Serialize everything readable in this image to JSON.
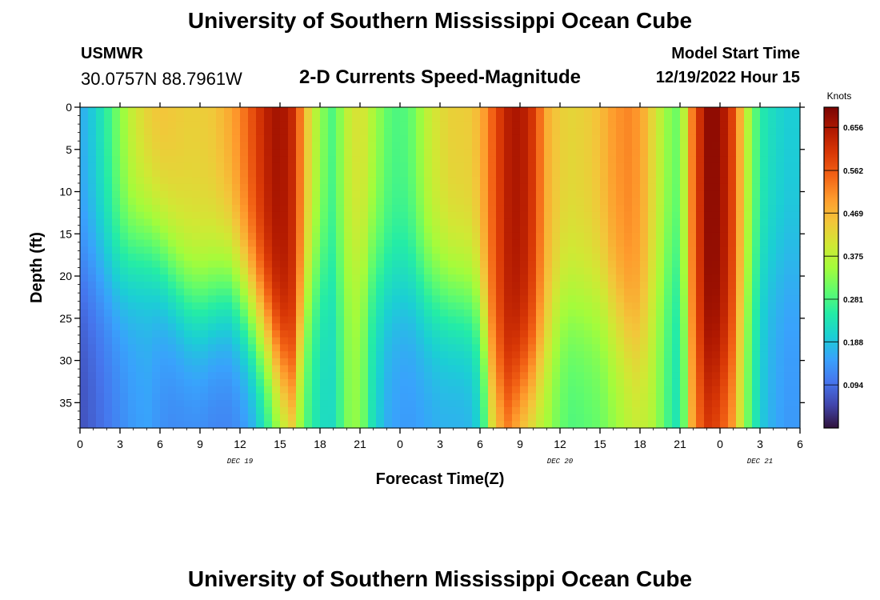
{
  "header": {
    "title": "University of Southern Mississippi Ocean Cube",
    "station": "USMWR",
    "coordinates": "30.0757N  88.7961W",
    "subtitle": "2-D Currents Speed-Magnitude",
    "model_start_label": "Model Start Time",
    "model_start_value": "12/19/2022 Hour 15"
  },
  "footer": {
    "title": "University of Southern Mississippi Ocean Cube"
  },
  "chart_data": {
    "type": "heatmap",
    "title": "2-D Currents Speed-Magnitude",
    "xlabel": "Forecast Time(Z)",
    "ylabel": "Depth (ft)",
    "x_tick_labels": [
      "0",
      "3",
      "6",
      "9",
      "12",
      "15",
      "18",
      "21",
      "0",
      "3",
      "6",
      "9",
      "12",
      "15",
      "18",
      "21",
      "0",
      "3",
      "6"
    ],
    "x_range_hours": [
      0,
      54
    ],
    "day_labels": [
      {
        "text": "DEC 19",
        "hour": 12
      },
      {
        "text": "DEC 20",
        "hour": 36
      },
      {
        "text": "DEC 21",
        "hour": 51
      }
    ],
    "y_ticks": [
      0,
      5,
      10,
      15,
      20,
      25,
      30,
      35
    ],
    "y_range_ft": [
      0,
      38
    ],
    "colorbar": {
      "label": "Knots",
      "min": 0.0,
      "max": 0.7,
      "ticks": [
        0.094,
        0.188,
        0.281,
        0.375,
        0.469,
        0.562,
        0.656
      ],
      "colormap": [
        "#30123b",
        "#4145ab",
        "#4675ed",
        "#39a2fc",
        "#1bcfd4",
        "#24eca6",
        "#61fc6c",
        "#a4fc3b",
        "#d1e834",
        "#f3c63a",
        "#fe9b2d",
        "#f36315",
        "#d93806",
        "#b11901",
        "#7a0402"
      ]
    },
    "columns": [
      {
        "hour": 0,
        "surf": 0.16,
        "bot": 0.06,
        "z": 0.5
      },
      {
        "hour": 1,
        "surf": 0.2,
        "bot": 0.08,
        "z": 0.5
      },
      {
        "hour": 2,
        "surf": 0.26,
        "bot": 0.1,
        "z": 0.5
      },
      {
        "hour": 3,
        "surf": 0.33,
        "bot": 0.12,
        "z": 0.5
      },
      {
        "hour": 4,
        "surf": 0.4,
        "bot": 0.14,
        "z": 0.45
      },
      {
        "hour": 5,
        "surf": 0.44,
        "bot": 0.15,
        "z": 0.42
      },
      {
        "hour": 6,
        "surf": 0.46,
        "bot": 0.13,
        "z": 0.45
      },
      {
        "hour": 7,
        "surf": 0.45,
        "bot": 0.12,
        "z": 0.52
      },
      {
        "hour": 8,
        "surf": 0.44,
        "bot": 0.12,
        "z": 0.58
      },
      {
        "hour": 9,
        "surf": 0.44,
        "bot": 0.12,
        "z": 0.6
      },
      {
        "hour": 10,
        "surf": 0.45,
        "bot": 0.11,
        "z": 0.58
      },
      {
        "hour": 11,
        "surf": 0.48,
        "bot": 0.11,
        "z": 0.55
      },
      {
        "hour": 12,
        "surf": 0.52,
        "bot": 0.12,
        "z": 0.58
      },
      {
        "hour": 13,
        "surf": 0.58,
        "bot": 0.15,
        "z": 0.65
      },
      {
        "hour": 14,
        "surf": 0.64,
        "bot": 0.22,
        "z": 0.72
      },
      {
        "hour": 15,
        "surf": 0.67,
        "bot": 0.3,
        "z": 0.82
      },
      {
        "hour": 16,
        "surf": 0.62,
        "bot": 0.36,
        "z": 0.9
      },
      {
        "hour": 17,
        "surf": 0.45,
        "bot": 0.28,
        "z": 0.6
      },
      {
        "hour": 18,
        "surf": 0.34,
        "bot": 0.22,
        "z": 0.5
      },
      {
        "hour": 19,
        "surf": 0.28,
        "bot": 0.22,
        "z": 0.5
      },
      {
        "hour": 20,
        "surf": 0.38,
        "bot": 0.32,
        "z": 0.5
      },
      {
        "hour": 21,
        "surf": 0.42,
        "bot": 0.34,
        "z": 0.5
      },
      {
        "hour": 22,
        "surf": 0.36,
        "bot": 0.22,
        "z": 0.5
      },
      {
        "hour": 23,
        "surf": 0.3,
        "bot": 0.16,
        "z": 0.55
      },
      {
        "hour": 24,
        "surf": 0.28,
        "bot": 0.14,
        "z": 0.55
      },
      {
        "hour": 25,
        "surf": 0.31,
        "bot": 0.14,
        "z": 0.55
      },
      {
        "hour": 26,
        "surf": 0.38,
        "bot": 0.15,
        "z": 0.57
      },
      {
        "hour": 27,
        "surf": 0.42,
        "bot": 0.16,
        "z": 0.58
      },
      {
        "hour": 28,
        "surf": 0.44,
        "bot": 0.16,
        "z": 0.59
      },
      {
        "hour": 29,
        "surf": 0.44,
        "bot": 0.16,
        "z": 0.6
      },
      {
        "hour": 30,
        "surf": 0.47,
        "bot": 0.2,
        "z": 0.62
      },
      {
        "hour": 31,
        "surf": 0.56,
        "bot": 0.4,
        "z": 0.85
      },
      {
        "hour": 32,
        "surf": 0.64,
        "bot": 0.47,
        "z": 0.92
      },
      {
        "hour": 33,
        "surf": 0.66,
        "bot": 0.4,
        "z": 0.88
      },
      {
        "hour": 34,
        "surf": 0.6,
        "bot": 0.36,
        "z": 0.85
      },
      {
        "hour": 35,
        "surf": 0.48,
        "bot": 0.34,
        "z": 0.75
      },
      {
        "hour": 36,
        "surf": 0.44,
        "bot": 0.3,
        "z": 0.6
      },
      {
        "hour": 37,
        "surf": 0.43,
        "bot": 0.28,
        "z": 0.6
      },
      {
        "hour": 38,
        "surf": 0.44,
        "bot": 0.29,
        "z": 0.6
      },
      {
        "hour": 39,
        "surf": 0.46,
        "bot": 0.3,
        "z": 0.6
      },
      {
        "hour": 40,
        "surf": 0.5,
        "bot": 0.33,
        "z": 0.65
      },
      {
        "hour": 41,
        "surf": 0.52,
        "bot": 0.36,
        "z": 0.7
      },
      {
        "hour": 42,
        "surf": 0.5,
        "bot": 0.38,
        "z": 0.75
      },
      {
        "hour": 43,
        "surf": 0.42,
        "bot": 0.36,
        "z": 0.6
      },
      {
        "hour": 44,
        "surf": 0.34,
        "bot": 0.28,
        "z": 0.5
      },
      {
        "hour": 45,
        "surf": 0.3,
        "bot": 0.22,
        "z": 0.5
      },
      {
        "hour": 46,
        "surf": 0.55,
        "bot": 0.5,
        "z": 0.8
      },
      {
        "hour": 47,
        "surf": 0.68,
        "bot": 0.58,
        "z": 0.85
      },
      {
        "hour": 48,
        "surf": 0.68,
        "bot": 0.55,
        "z": 0.85
      },
      {
        "hour": 49,
        "surf": 0.58,
        "bot": 0.48,
        "z": 0.8
      },
      {
        "hour": 50,
        "surf": 0.38,
        "bot": 0.32,
        "z": 0.6
      },
      {
        "hour": 51,
        "surf": 0.25,
        "bot": 0.2,
        "z": 0.5
      },
      {
        "hour": 52,
        "surf": 0.22,
        "bot": 0.16,
        "z": 0.5
      },
      {
        "hour": 53,
        "surf": 0.2,
        "bot": 0.14,
        "z": 0.5
      },
      {
        "hour": 54,
        "surf": 0.2,
        "bot": 0.14,
        "z": 0.5
      }
    ]
  }
}
